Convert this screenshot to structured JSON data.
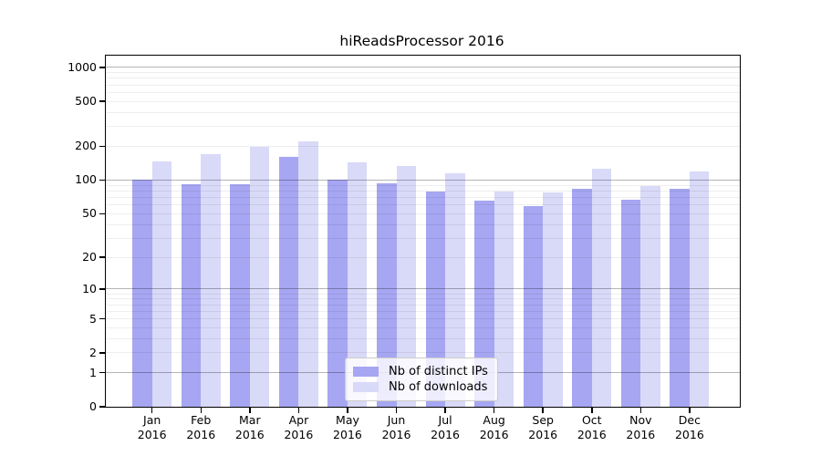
{
  "chart_data": {
    "type": "bar",
    "title": "hiReadsProcessor 2016",
    "categories": [
      "Jan 2016",
      "Feb 2016",
      "Mar 2016",
      "Apr 2016",
      "May 2016",
      "Jun 2016",
      "Jul 2016",
      "Aug 2016",
      "Sep 2016",
      "Oct 2016",
      "Nov 2016",
      "Dec 2016"
    ],
    "series": [
      {
        "name": "Nb of distinct IPs",
        "color": "#a6a6f2",
        "values": [
          100,
          92,
          92,
          161,
          100,
          94,
          79,
          65,
          58,
          84,
          67,
          84
        ]
      },
      {
        "name": "Nb of downloads",
        "color": "#d9d9f8",
        "values": [
          147,
          169,
          197,
          221,
          143,
          134,
          115,
          79,
          77,
          126,
          89,
          120
        ]
      }
    ],
    "xlabel": "",
    "ylabel": "",
    "y_scale": "log10(1+y)",
    "y_ticks": [
      0,
      1,
      2,
      5,
      10,
      20,
      50,
      100,
      200,
      500,
      1000
    ],
    "ylim": [
      0,
      1270
    ],
    "grid": {
      "major": true,
      "minor": true
    },
    "legend_position": "inside-bottom-center"
  }
}
